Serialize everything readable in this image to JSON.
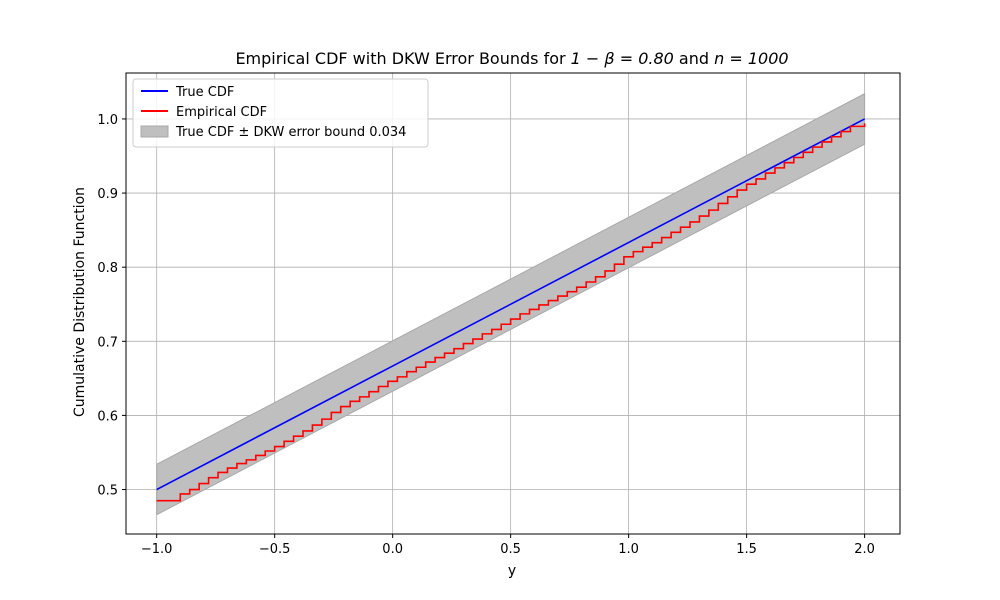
{
  "chart_data": {
    "type": "line",
    "title_parts": {
      "prefix": "Empirical CDF with DKW Error Bounds for ",
      "beta_expr": "1 − β = 0.80",
      "connector": " and ",
      "n_expr": "n = 1000"
    },
    "xlabel": "y",
    "ylabel": "Cumulative Distribution Function",
    "xlim": [
      -1.13,
      2.15
    ],
    "ylim": [
      0.44,
      1.062
    ],
    "xticks": [
      -1.0,
      -0.5,
      0.0,
      0.5,
      1.0,
      1.5,
      2.0
    ],
    "xtick_labels": [
      "−1.0",
      "−0.5",
      "0.0",
      "0.5",
      "1.0",
      "1.5",
      "2.0"
    ],
    "yticks": [
      0.5,
      0.6,
      0.7,
      0.8,
      0.9,
      1.0
    ],
    "ytick_labels": [
      "0.5",
      "0.6",
      "0.7",
      "0.8",
      "0.9",
      "1.0"
    ],
    "grid": true,
    "legend_position": "top-left",
    "legend": [
      {
        "label": "True CDF",
        "kind": "line",
        "color": "#0000ff"
      },
      {
        "label": "Empirical CDF",
        "kind": "line",
        "color": "#ff0000"
      },
      {
        "label": "True CDF ± DKW error bound 0.034",
        "kind": "patch",
        "color": "#bfbfbf"
      }
    ],
    "dkw_bound": 0.034,
    "true_cdf": {
      "x": [
        -1.0,
        2.0
      ],
      "y": [
        0.5,
        1.0
      ],
      "color": "#0000ff"
    },
    "band": {
      "color": "#bfbfbf",
      "edge": "#a8a8a8"
    },
    "empirical_cdf": {
      "color": "#ff0000",
      "x": [
        -1.0,
        -0.94,
        -0.9,
        -0.86,
        -0.82,
        -0.78,
        -0.74,
        -0.7,
        -0.66,
        -0.62,
        -0.58,
        -0.54,
        -0.5,
        -0.46,
        -0.42,
        -0.38,
        -0.34,
        -0.3,
        -0.26,
        -0.22,
        -0.18,
        -0.14,
        -0.1,
        -0.06,
        -0.02,
        0.02,
        0.06,
        0.1,
        0.14,
        0.18,
        0.22,
        0.26,
        0.3,
        0.34,
        0.38,
        0.42,
        0.46,
        0.5,
        0.54,
        0.58,
        0.62,
        0.66,
        0.7,
        0.74,
        0.78,
        0.82,
        0.86,
        0.9,
        0.94,
        0.98,
        1.02,
        1.06,
        1.1,
        1.14,
        1.18,
        1.22,
        1.26,
        1.3,
        1.34,
        1.38,
        1.42,
        1.46,
        1.5,
        1.54,
        1.58,
        1.62,
        1.66,
        1.7,
        1.74,
        1.78,
        1.82,
        1.86,
        1.9,
        1.94,
        2.0
      ],
      "y": [
        0.485,
        0.485,
        0.494,
        0.5,
        0.508,
        0.516,
        0.523,
        0.529,
        0.535,
        0.54,
        0.546,
        0.552,
        0.558,
        0.565,
        0.572,
        0.579,
        0.587,
        0.595,
        0.604,
        0.612,
        0.619,
        0.625,
        0.632,
        0.639,
        0.646,
        0.652,
        0.659,
        0.665,
        0.672,
        0.678,
        0.684,
        0.69,
        0.697,
        0.703,
        0.71,
        0.716,
        0.723,
        0.73,
        0.737,
        0.743,
        0.749,
        0.755,
        0.761,
        0.767,
        0.773,
        0.78,
        0.787,
        0.795,
        0.804,
        0.814,
        0.821,
        0.827,
        0.833,
        0.84,
        0.847,
        0.854,
        0.861,
        0.869,
        0.877,
        0.886,
        0.895,
        0.904,
        0.912,
        0.919,
        0.927,
        0.934,
        0.941,
        0.948,
        0.955,
        0.962,
        0.969,
        0.976,
        0.983,
        0.99,
        0.994
      ]
    }
  }
}
